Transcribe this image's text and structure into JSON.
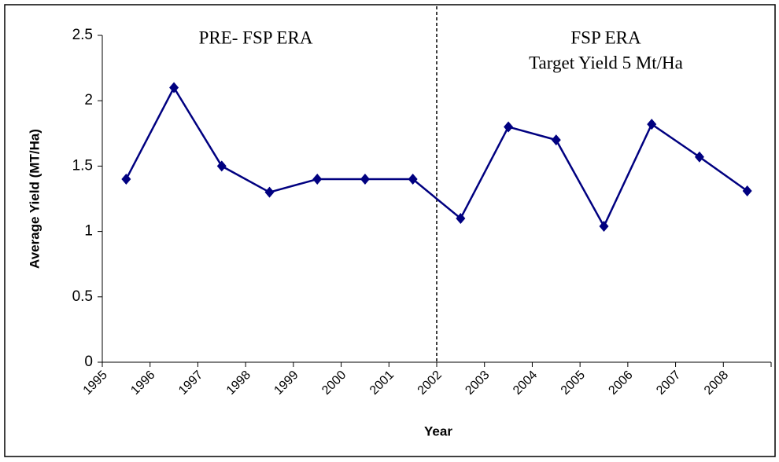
{
  "chart_data": {
    "type": "line",
    "x_label": "Year",
    "y_label": "Average Yield (MT/Ha)",
    "annotations": [
      "PRE- FSP ERA",
      "FSP ERA",
      "Target Yield 5 Mt/Ha"
    ],
    "categories": [
      "1995",
      "1996",
      "1997",
      "1998",
      "1999",
      "2000",
      "2001",
      "2002",
      "2003",
      "2004",
      "2005",
      "2006",
      "2007",
      "2008"
    ],
    "series": [
      {
        "name": "Average Yield",
        "color": "#000080",
        "values": [
          1.4,
          2.1,
          1.5,
          1.3,
          1.4,
          1.4,
          1.4,
          1.1,
          1.8,
          1.7,
          1.04,
          1.82,
          1.57,
          1.31
        ]
      }
    ],
    "divider": 7,
    "ylim": [
      0,
      2.5
    ],
    "yticks": [
      0,
      0.5,
      1,
      1.5,
      2,
      2.5
    ],
    "grid": false
  }
}
